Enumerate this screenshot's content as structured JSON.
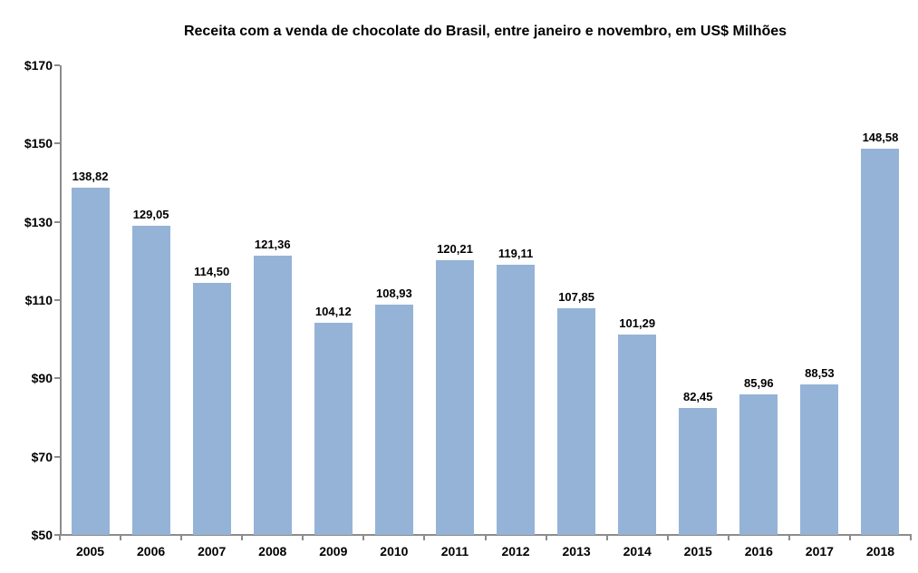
{
  "title": "Receita com a venda de chocolate do Brasil, entre janeiro e novembro, em US$ Milhões",
  "chart_data": {
    "type": "bar",
    "title": "Receita com a venda de chocolate do Brasil, entre janeiro e novembro, em US$ Milhões",
    "categories": [
      "2005",
      "2006",
      "2007",
      "2008",
      "2009",
      "2010",
      "2011",
      "2012",
      "2013",
      "2014",
      "2015",
      "2016",
      "2017",
      "2018"
    ],
    "values": [
      138.82,
      129.05,
      114.5,
      121.36,
      104.12,
      108.93,
      120.21,
      119.11,
      107.85,
      101.29,
      82.45,
      85.96,
      88.53,
      148.58
    ],
    "value_labels": [
      "138,82",
      "129,05",
      "114,50",
      "121,36",
      "104,12",
      "108,93",
      "120,21",
      "119,11",
      "107,85",
      "101,29",
      "82,45",
      "85,96",
      "88,53",
      "148,58"
    ],
    "xlabel": "",
    "ylabel": "",
    "ylim": [
      50,
      170
    ],
    "y_ticks": [
      170,
      150,
      130,
      110,
      90,
      70,
      50
    ],
    "y_tick_labels": [
      "$170",
      "$150",
      "$130",
      "$110",
      "$90",
      "$70",
      "$50"
    ],
    "grid": false,
    "legend": false,
    "bar_color": "#95B3D7",
    "axis_color": "#8c8c8c",
    "text_color": "#000000",
    "background_color": "#ffffff"
  }
}
